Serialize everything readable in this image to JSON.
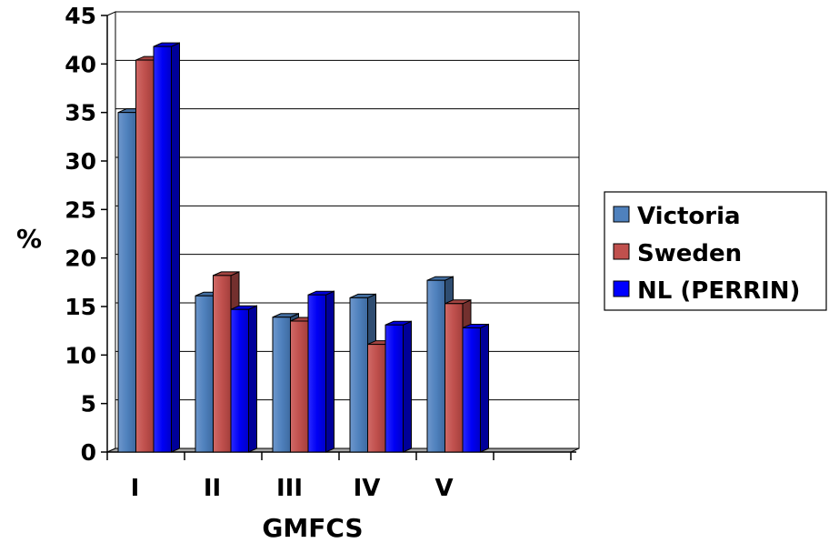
{
  "chart_data": {
    "type": "bar",
    "title": "",
    "xlabel": "GMFCS",
    "ylabel": "%",
    "categories": [
      "I",
      "II",
      "III",
      "IV",
      "V",
      ""
    ],
    "series": [
      {
        "name": "Victoria",
        "color": "#4f81bd",
        "values": [
          35.0,
          16.1,
          13.9,
          15.9,
          17.7,
          null
        ]
      },
      {
        "name": "Sweden",
        "color": "#c0504d",
        "values": [
          40.4,
          18.2,
          13.5,
          11.1,
          15.3,
          null
        ]
      },
      {
        "name": "NL (PERRIN)",
        "color": "#0000ff",
        "values": [
          41.8,
          14.7,
          16.2,
          13.1,
          12.8,
          null
        ]
      }
    ],
    "ylim": [
      0,
      45
    ],
    "yticks": [
      0,
      5,
      10,
      15,
      20,
      25,
      30,
      35,
      40,
      45
    ],
    "grid": true,
    "legend": "right",
    "style": "3d-clustered-column"
  }
}
